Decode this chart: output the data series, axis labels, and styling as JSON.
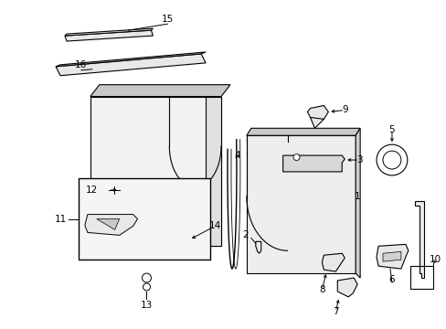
{
  "bg_color": "#ffffff",
  "line_color": "#000000",
  "fig_width": 4.89,
  "fig_height": 3.6,
  "dpi": 100,
  "gray_fill": "#e8e8e8",
  "light_gray": "#f0f0f0",
  "mid_gray": "#c8c8c8"
}
